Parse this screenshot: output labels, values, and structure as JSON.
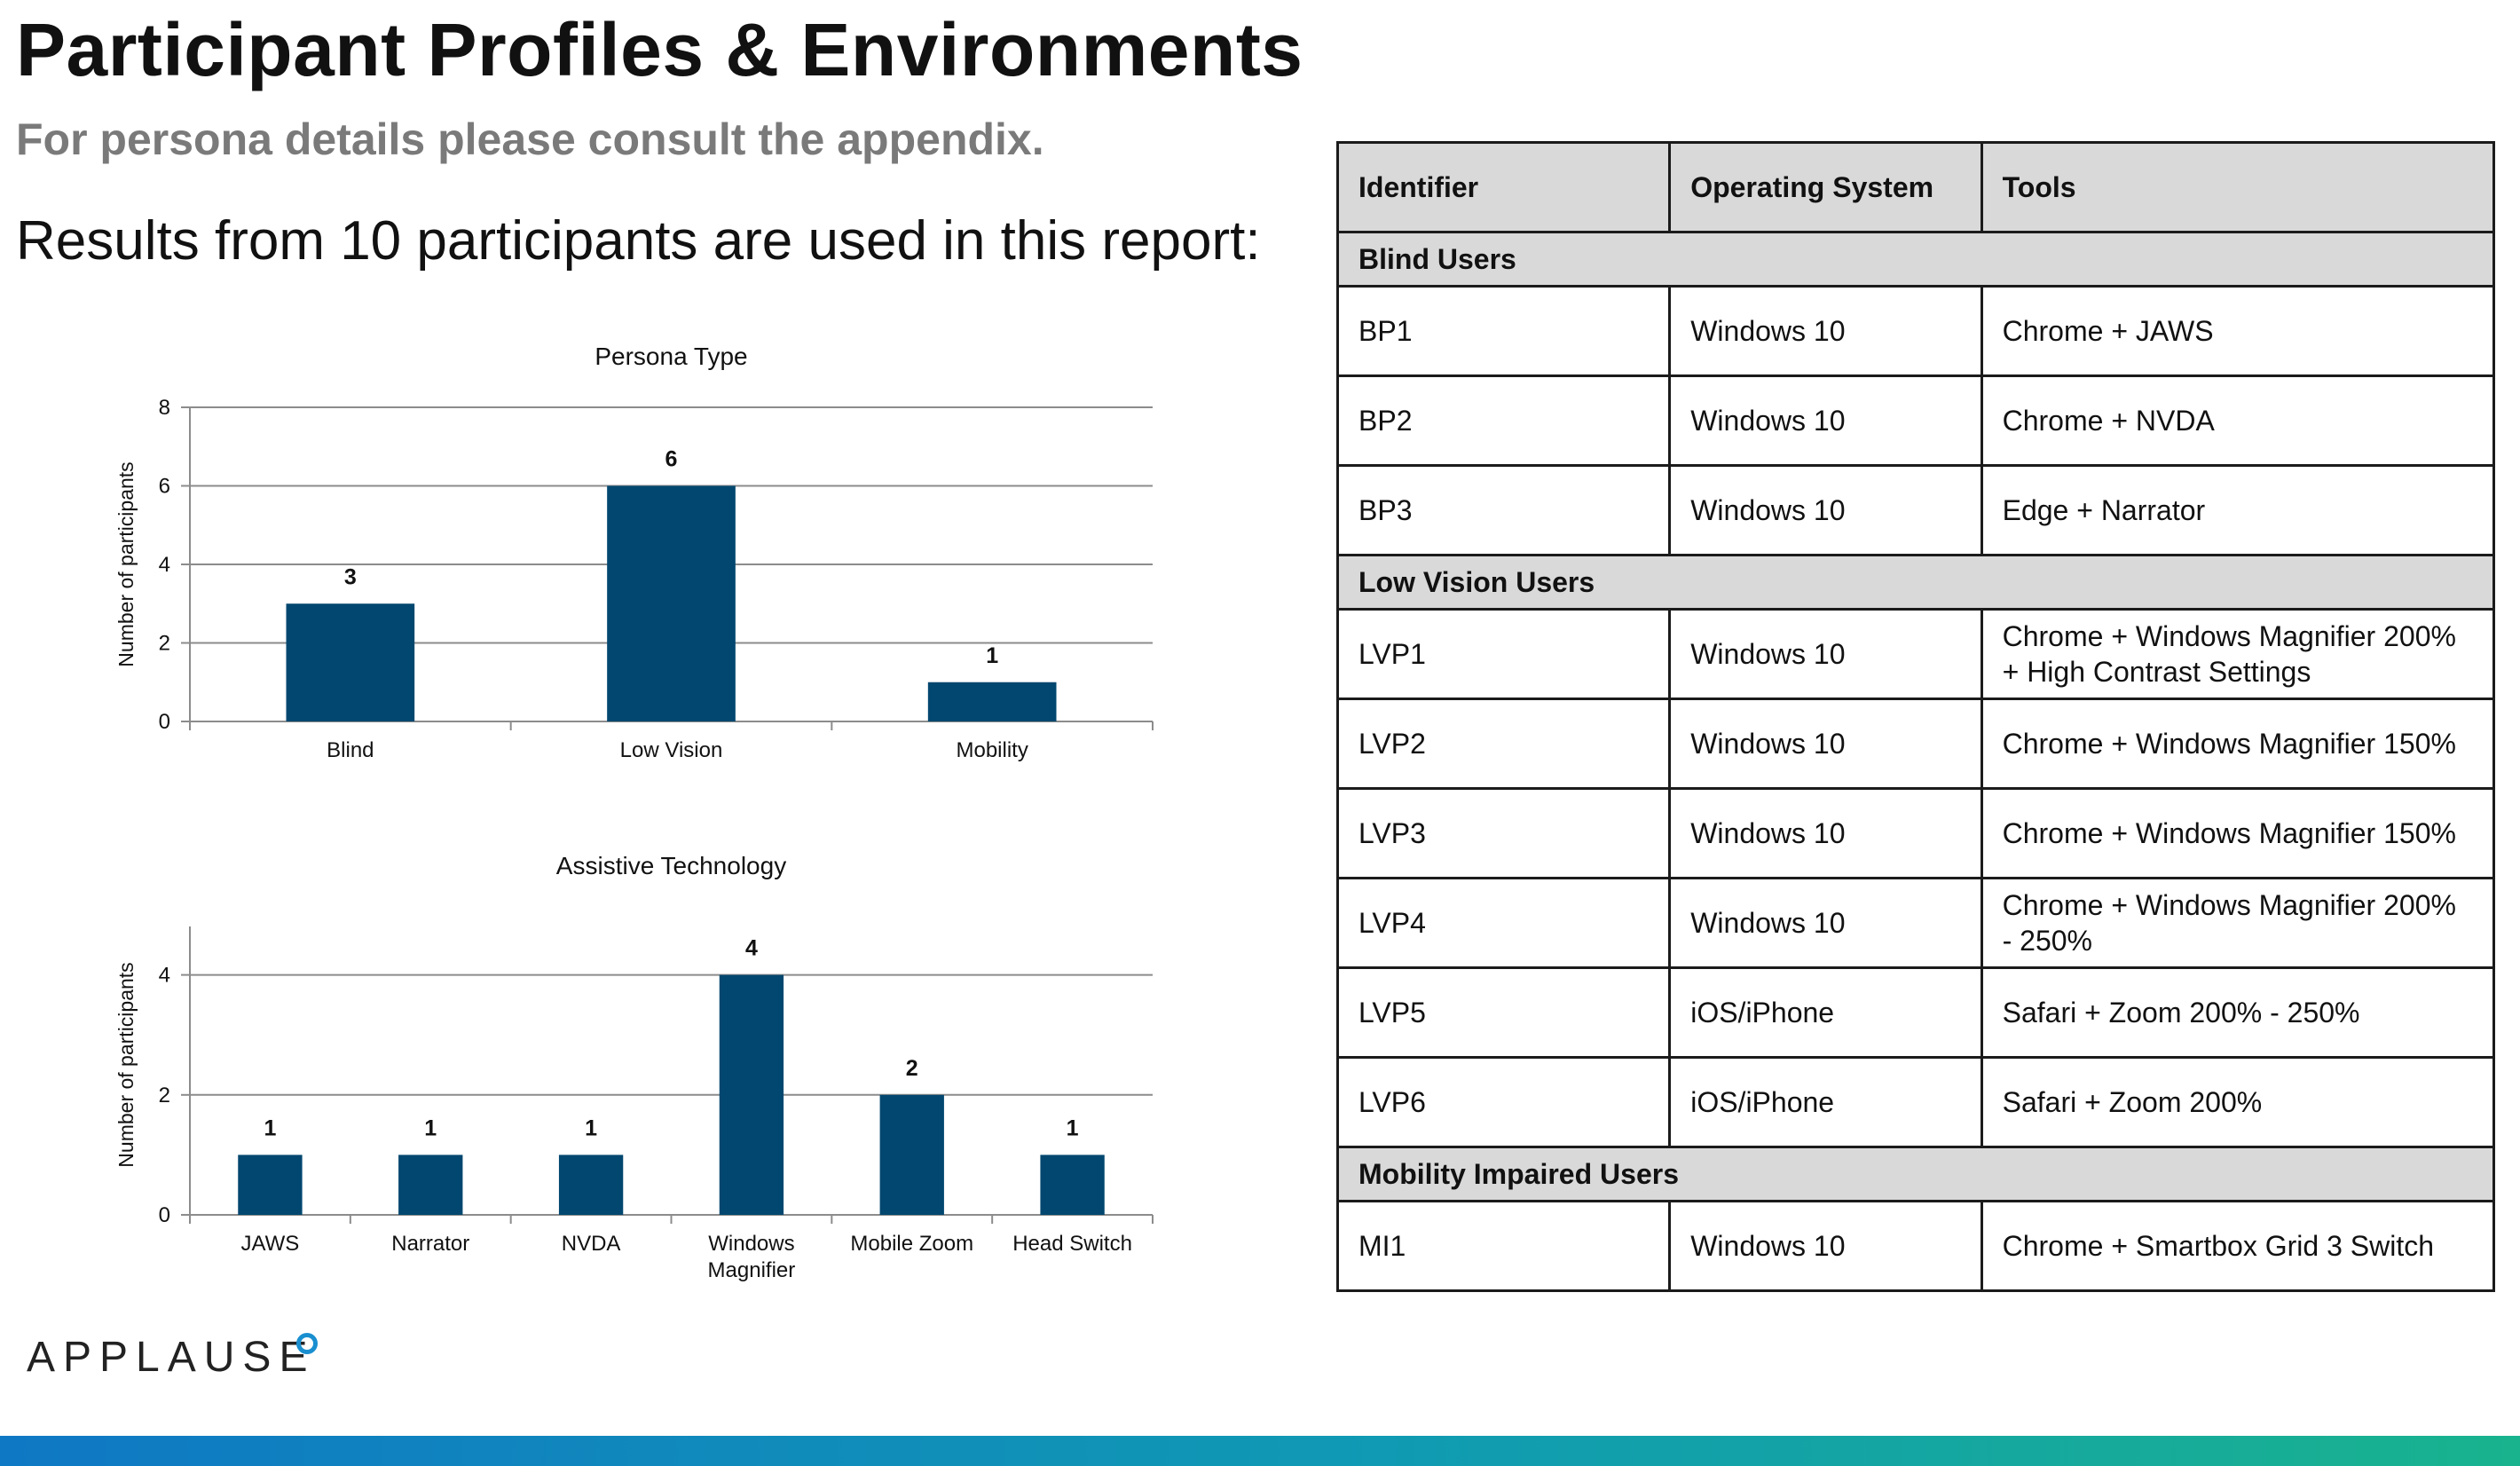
{
  "page": {
    "title": "Participant Profiles & Environments",
    "subtitle": "For persona details please consult the appendix.",
    "lead": "Results from 10 participants are used in this report:"
  },
  "brand": {
    "logo_text": "APPLAUSE",
    "accent": "#1a8fd0",
    "bar_color": "#02476f"
  },
  "chart_data": [
    {
      "type": "bar",
      "title": "Persona Type",
      "xlabel": "",
      "ylabel": "Number of participants",
      "categories": [
        "Blind",
        "Low Vision",
        "Mobility"
      ],
      "values": [
        3,
        6,
        1
      ],
      "ylim": [
        0,
        8
      ],
      "yticks": [
        0,
        2,
        4,
        6,
        8
      ],
      "grid": true,
      "legend": "none"
    },
    {
      "type": "bar",
      "title": "Assistive Technology",
      "xlabel": "",
      "ylabel": "Number of participants",
      "categories": [
        "JAWS",
        "Narrator",
        "NVDA",
        "Windows Magnifier",
        "Mobile Zoom",
        "Head Switch"
      ],
      "values": [
        1,
        1,
        1,
        4,
        2,
        1
      ],
      "ylim": [
        0,
        5
      ],
      "yticks": [
        0,
        2,
        4
      ],
      "grid": true,
      "legend": "none"
    }
  ],
  "table": {
    "headers": [
      "Identifier",
      "Operating System",
      "Tools"
    ],
    "groups": [
      {
        "label": "Blind Users",
        "rows": [
          [
            "BP1",
            "Windows 10",
            "Chrome + JAWS"
          ],
          [
            "BP2",
            "Windows 10",
            "Chrome + NVDA"
          ],
          [
            "BP3",
            "Windows 10",
            "Edge + Narrator"
          ]
        ]
      },
      {
        "label": "Low Vision Users",
        "rows": [
          [
            "LVP1",
            "Windows 10",
            "Chrome + Windows Magnifier 200% + High Contrast Settings"
          ],
          [
            "LVP2",
            "Windows 10",
            "Chrome + Windows Magnifier 150%"
          ],
          [
            "LVP3",
            "Windows 10",
            "Chrome + Windows Magnifier 150%"
          ],
          [
            "LVP4",
            "Windows 10",
            "Chrome + Windows Magnifier 200% - 250%"
          ],
          [
            "LVP5",
            "iOS/iPhone",
            "Safari + Zoom 200% - 250%"
          ],
          [
            "LVP6",
            "iOS/iPhone",
            "Safari + Zoom 200%"
          ]
        ]
      },
      {
        "label": "Mobility Impaired Users",
        "rows": [
          [
            "MI1",
            "Windows 10",
            "Chrome + Smartbox Grid 3 Switch"
          ]
        ]
      }
    ]
  }
}
